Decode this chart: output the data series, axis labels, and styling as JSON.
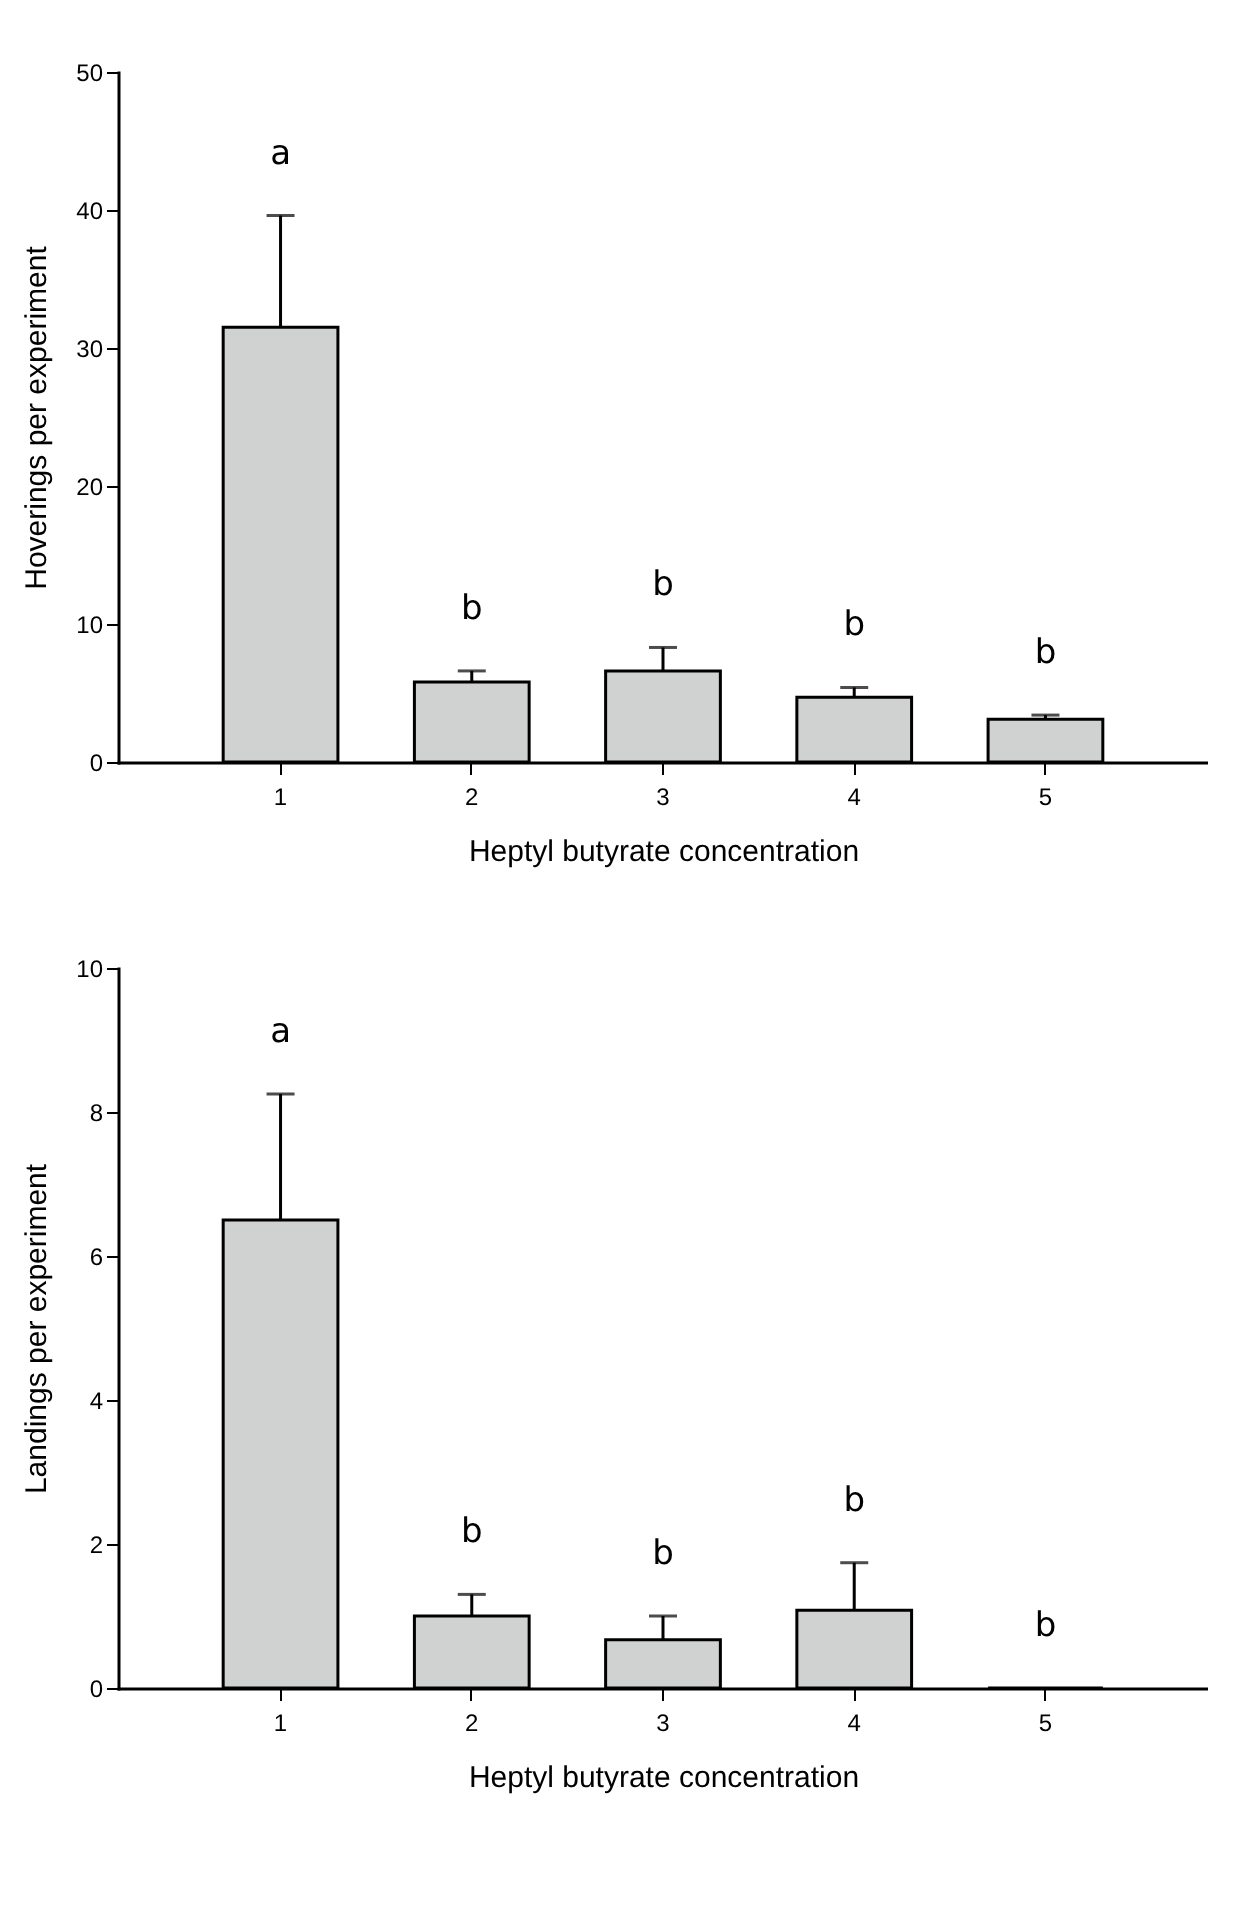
{
  "chart_data": [
    {
      "type": "bar",
      "categories": [
        "1",
        "2",
        "3",
        "4",
        "5"
      ],
      "xlabel": "Heptyl butyrate concentration",
      "ylabel": "Hoverings per experiment",
      "series": [
        {
          "color": "#d0d2d1",
          "values": [
            31.5,
            5.8,
            6.6,
            4.7,
            3.1
          ],
          "errors": [
            [
              31.5,
              39.6
            ],
            [
              5.8,
              6.6
            ],
            [
              6.6,
              8.3
            ],
            [
              4.7,
              5.4
            ],
            [
              3.1,
              3.4
            ]
          ]
        }
      ],
      "ylim": [
        0,
        50
      ],
      "yticks": [
        0,
        10,
        20,
        30,
        40,
        50
      ],
      "annotations": [
        "a",
        "b",
        "b",
        "b",
        "b"
      ]
    },
    {
      "type": "bar",
      "categories": [
        "1",
        "2",
        "3",
        "4",
        "5"
      ],
      "xlabel": "Heptyl butyrate concentration",
      "ylabel": "Landings per experiment",
      "series": [
        {
          "color": "#d0d2d1",
          "values": [
            6.5,
            1.0,
            0.67,
            1.08,
            0
          ],
          "errors": [
            [
              6.5,
              8.25
            ],
            [
              1.0,
              1.3
            ],
            [
              0.67,
              1.0
            ],
            [
              1.08,
              1.74
            ],
            null
          ]
        }
      ],
      "ylim": [
        0,
        10
      ],
      "yticks": [
        0,
        2,
        4,
        6,
        8,
        10
      ],
      "annotations": [
        "a",
        "b",
        "b",
        "b",
        "b"
      ]
    }
  ]
}
